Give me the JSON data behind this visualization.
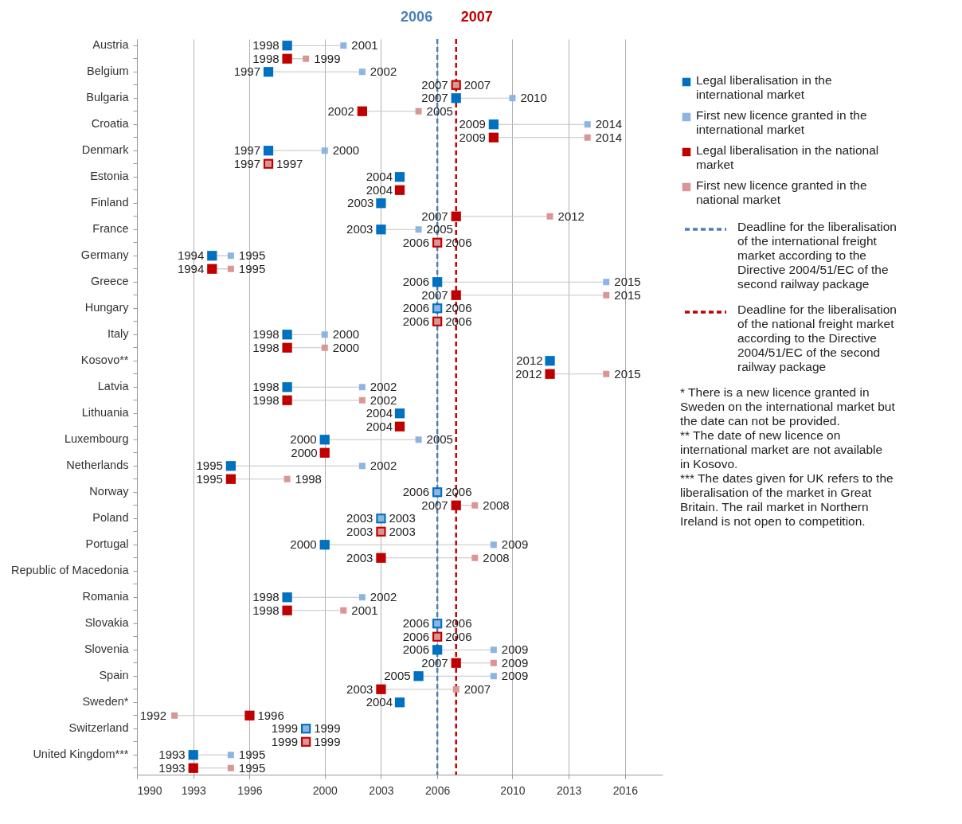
{
  "chart_data": {
    "type": "scatter",
    "orientation": "horizontal",
    "marker": "square",
    "data_labels": true,
    "grid": "x",
    "legend": "right",
    "xlim": [
      1990,
      2018
    ],
    "xticks": [
      1990,
      1993,
      1996,
      2000,
      2003,
      2006,
      2010,
      2013,
      2016
    ],
    "categories": [
      "Austria",
      null,
      "Belgium",
      null,
      "Bulgaria",
      null,
      "Croatia",
      null,
      "Denmark",
      null,
      "Estonia",
      null,
      "Finland",
      null,
      "France",
      null,
      "Germany",
      null,
      "Greece",
      null,
      "Hungary",
      null,
      "Italy",
      null,
      "Kosovo**",
      null,
      "Latvia",
      null,
      "Lithuania",
      null,
      "Luxembourg",
      null,
      "Netherlands",
      null,
      "Norway",
      null,
      "Poland",
      null,
      "Portugal",
      null,
      "Republic of Macedonia",
      null,
      "Romania",
      null,
      "Slovakia",
      null,
      "Slovenia",
      null,
      "Spain",
      null,
      "Sweden*",
      null,
      "Switzerland",
      null,
      "United Kingdom***",
      null
    ],
    "series": [
      {
        "name": "Legal liberalisation in the international market",
        "color": "#0070c0",
        "values": [
          1998,
          null,
          1997,
          null,
          2007,
          null,
          2009,
          null,
          1997,
          null,
          2004,
          null,
          2003,
          null,
          2003,
          null,
          1994,
          null,
          2006,
          null,
          2006,
          null,
          1998,
          null,
          2012,
          null,
          1998,
          null,
          2004,
          null,
          2000,
          null,
          1995,
          null,
          2006,
          null,
          2003,
          null,
          2000,
          null,
          null,
          null,
          1998,
          null,
          2006,
          null,
          2006,
          null,
          2005,
          null,
          2004,
          null,
          1999,
          null,
          1993,
          null
        ]
      },
      {
        "name": "First new licence granted in the international market",
        "color": "#8db4e2",
        "values": [
          2001,
          null,
          2002,
          null,
          2010,
          null,
          2014,
          null,
          2000,
          null,
          null,
          null,
          null,
          null,
          2005,
          null,
          1995,
          null,
          2015,
          null,
          2006,
          null,
          2000,
          null,
          null,
          null,
          2002,
          null,
          null,
          null,
          2005,
          null,
          2002,
          null,
          2006,
          null,
          2003,
          null,
          2009,
          null,
          null,
          null,
          2002,
          null,
          2006,
          null,
          2009,
          null,
          2009,
          null,
          null,
          null,
          1999,
          null,
          1995,
          null
        ]
      },
      {
        "name": "Legal liberalisation in the national market",
        "color": "#c00000",
        "values": [
          null,
          1998,
          null,
          2007,
          null,
          2002,
          null,
          2009,
          null,
          1997,
          null,
          2004,
          null,
          2007,
          null,
          2006,
          null,
          1994,
          null,
          2007,
          null,
          2006,
          null,
          1998,
          null,
          2012,
          null,
          1998,
          null,
          2004,
          null,
          2000,
          null,
          1995,
          null,
          2007,
          null,
          2003,
          null,
          2003,
          null,
          null,
          null,
          1998,
          null,
          2006,
          null,
          2007,
          null,
          2003,
          null,
          1996,
          null,
          1999,
          null,
          1993
        ]
      },
      {
        "name": "First new licence granted in the national market",
        "color": "#da9694",
        "values": [
          null,
          1999,
          null,
          2007,
          null,
          2005,
          null,
          2014,
          null,
          1997,
          null,
          null,
          null,
          2012,
          null,
          2006,
          null,
          1995,
          null,
          2015,
          null,
          2006,
          null,
          2000,
          null,
          2015,
          null,
          2002,
          null,
          null,
          null,
          null,
          null,
          1998,
          null,
          2008,
          null,
          2003,
          null,
          2008,
          null,
          null,
          null,
          2001,
          null,
          2006,
          null,
          2009,
          null,
          2007,
          null,
          1992,
          null,
          1999,
          null,
          1995
        ]
      }
    ],
    "ref_lines": [
      {
        "axis": "x",
        "value": 2006,
        "color": "#4a7ebb",
        "line_style": "dashed",
        "label": "2006"
      },
      {
        "axis": "x",
        "value": 2007,
        "color": "#c00000",
        "line_style": "dashed",
        "label": "2007"
      }
    ],
    "annotations": [
      "Deadline for the liberalisation of the international freight market according to the Directive 2004/51/EC of the second railway package",
      "Deadline for the liberalisation of the national freight market according to the Directive 2004/51/EC of the second railway package",
      "* There is a new licence granted in Sweden on the international market but the date can not be provided.",
      "** The date of new licence on international market are not available in Kosovo.",
      "*** The dates given for UK refers to the liberalisation of the market in Great Britain. The rail market in Northern Ireland is not open to competition."
    ]
  }
}
